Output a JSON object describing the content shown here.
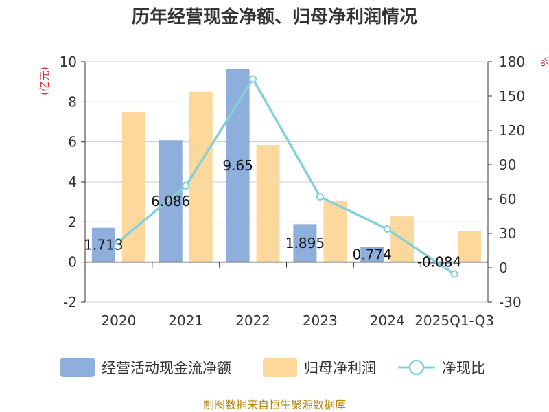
{
  "chart_data": {
    "type": "bar",
    "title": "历年经营现金净额、归母净利润情况",
    "categories": [
      "2020",
      "2021",
      "2022",
      "2023",
      "2024",
      "2025Q1-Q3"
    ],
    "series": [
      {
        "name": "经营活动现金流净额",
        "type": "bar",
        "axis": "left",
        "color": "#8eaedc",
        "values": [
          1.713,
          6.086,
          9.65,
          1.895,
          0.774,
          -0.084
        ],
        "labels": [
          "1.713",
          "6.086",
          "9.65",
          "1.895",
          "0.774",
          "-0.084"
        ]
      },
      {
        "name": "归母净利润",
        "type": "bar",
        "axis": "left",
        "color": "#fdd89c",
        "values": [
          7.5,
          8.5,
          5.85,
          3.05,
          2.28,
          1.55
        ]
      },
      {
        "name": "净现比",
        "type": "line",
        "axis": "right",
        "color": "#86d1d8",
        "values": [
          22.8,
          71.6,
          165,
          62.1,
          33.9,
          -5.4
        ]
      }
    ],
    "y_left": {
      "label": "(亿元)",
      "min": -2,
      "max": 10,
      "ticks": [
        -2,
        0,
        2,
        4,
        6,
        8,
        10
      ]
    },
    "y_right": {
      "label": "%",
      "min": -30,
      "max": 180,
      "ticks": [
        -30,
        0,
        30,
        60,
        90,
        120,
        150,
        180
      ]
    },
    "grid": true,
    "legend": "bottom",
    "source": "制图数据来自恒生聚源数据库"
  }
}
